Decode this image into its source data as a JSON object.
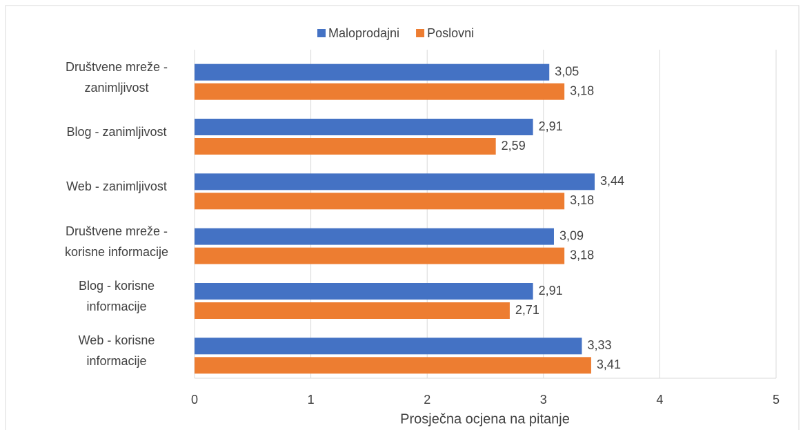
{
  "chart_data": {
    "type": "hbar",
    "x_axis_label": "Prosječna ocjena na pitanje",
    "categories": [
      "Društvene mreže - zanimljivost",
      "Blog - zanimljivost",
      "Web - zanimljivost",
      "Društvene mreže - korisne informacije",
      "Blog - korisne informacije",
      "Web - korisne informacije"
    ],
    "series": [
      {
        "name": "Maloprodajni",
        "color": "#4472c4",
        "values": [
          3.05,
          2.91,
          3.44,
          3.09,
          2.91,
          3.33
        ],
        "value_labels": [
          "3,05",
          "2,91",
          "3,44",
          "3,09",
          "2,91",
          "3,33"
        ]
      },
      {
        "name": "Poslovni",
        "color": "#ed7d31",
        "values": [
          3.18,
          2.59,
          3.18,
          3.18,
          2.71,
          3.41
        ],
        "value_labels": [
          "3,18",
          "2,59",
          "3,18",
          "3,18",
          "2,71",
          "3,41"
        ]
      }
    ],
    "xlim": [
      0,
      5
    ],
    "xticks": [
      0,
      1,
      2,
      3,
      4,
      5
    ],
    "grid": true,
    "legend": "top"
  }
}
